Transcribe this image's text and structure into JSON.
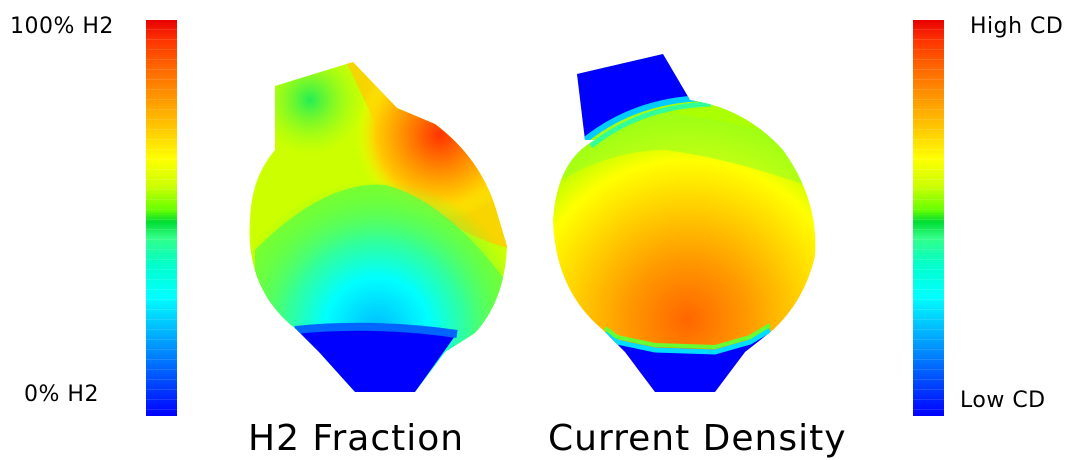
{
  "left_scale": {
    "top_label": "100% H2",
    "bottom_label": "0% H2"
  },
  "right_scale": {
    "top_label": "High CD",
    "bottom_label": "Low CD"
  },
  "captions": {
    "left": "H2 Fraction",
    "right": "Current Density"
  },
  "colors": {
    "max": "#e60000",
    "mid": "#00dd33",
    "min": "#0000ff",
    "background": "#ffffff"
  }
}
